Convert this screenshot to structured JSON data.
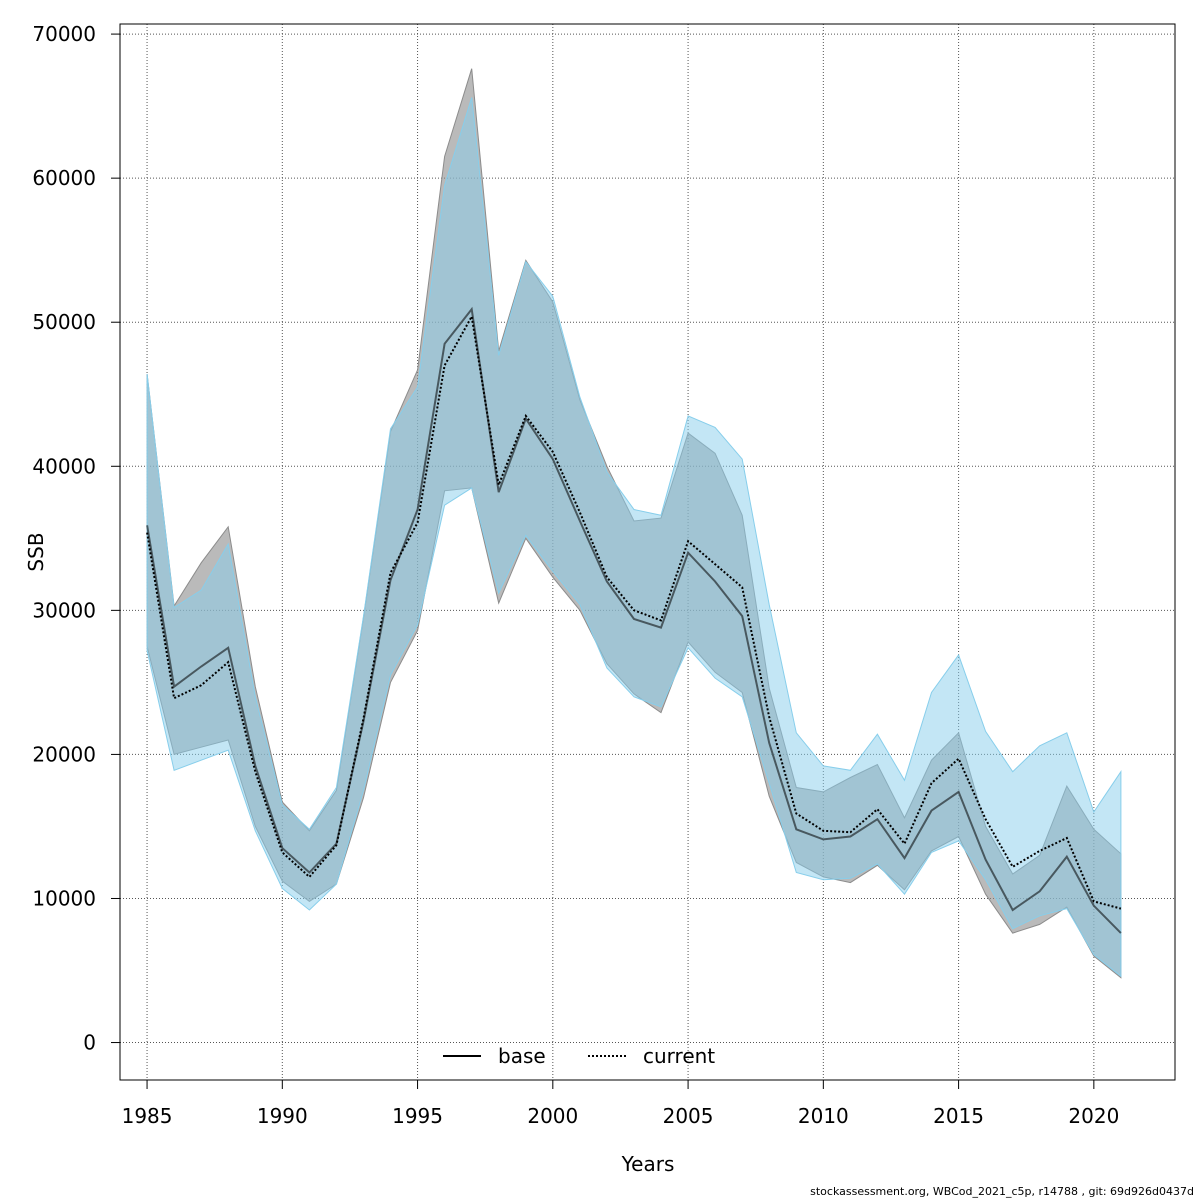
{
  "chart_data": {
    "type": "line",
    "title": "",
    "xlabel": "Years",
    "ylabel": "SSB",
    "xlim": [
      1984,
      2023
    ],
    "ylim": [
      -2600,
      70700
    ],
    "grid": true,
    "legend_position": "bottom-center",
    "x_ticks": [
      1985,
      1990,
      1995,
      2000,
      2005,
      2010,
      2015,
      2020
    ],
    "y_ticks": [
      0,
      10000,
      20000,
      30000,
      40000,
      50000,
      60000,
      70000
    ],
    "x": [
      1985,
      1986,
      1987,
      1988,
      1989,
      1990,
      1991,
      1992,
      1993,
      1994,
      1995,
      1996,
      1997,
      1998,
      1999,
      2000,
      2001,
      2002,
      2003,
      2004,
      2005,
      2006,
      2007,
      2008,
      2009,
      2010,
      2011,
      2012,
      2013,
      2014,
      2015,
      2016,
      2017,
      2018,
      2019,
      2020,
      2021
    ],
    "series": [
      {
        "name": "base",
        "line_style": "solid",
        "line_color": "#000000",
        "band_color": "#8c8c8c",
        "values": [
          35900,
          24700,
          26100,
          27400,
          19200,
          13500,
          11800,
          13800,
          22300,
          32100,
          37000,
          48500,
          50900,
          38200,
          43300,
          40500,
          36200,
          32000,
          29400,
          28800,
          34000,
          32000,
          29600,
          20800,
          14800,
          14100,
          14300,
          15500,
          12800,
          16100,
          17400,
          12700,
          9200,
          10500,
          12900,
          9500,
          7600
        ],
        "lower": [
          27500,
          20000,
          20500,
          21000,
          15000,
          11200,
          9800,
          11000,
          17000,
          25000,
          28600,
          38300,
          38500,
          30500,
          35000,
          32300,
          30000,
          26300,
          24200,
          22900,
          27800,
          25700,
          24300,
          17100,
          12500,
          11500,
          11100,
          12300,
          10600,
          13300,
          14300,
          10300,
          7600,
          8200,
          9400,
          6000,
          4500
        ],
        "upper": [
          46400,
          30300,
          33300,
          35800,
          24700,
          16700,
          14700,
          17500,
          29500,
          42400,
          46700,
          61500,
          67600,
          48000,
          54300,
          51400,
          44600,
          40000,
          36200,
          36400,
          42300,
          40900,
          36600,
          24600,
          17700,
          17400,
          18400,
          19300,
          15600,
          19600,
          21500,
          15000,
          11700,
          13000,
          17800,
          14800,
          13100
        ]
      },
      {
        "name": "current",
        "line_style": "dotted",
        "line_color": "#000000",
        "band_color": "#87ceeb",
        "values": [
          35400,
          23900,
          24800,
          26400,
          18800,
          13200,
          11500,
          13700,
          22500,
          32600,
          36100,
          47000,
          50400,
          38700,
          43500,
          41000,
          36800,
          32300,
          30000,
          29300,
          34800,
          33200,
          31600,
          22600,
          15900,
          14700,
          14600,
          16200,
          13800,
          18000,
          19700,
          15500,
          12200,
          13300,
          14200,
          9800,
          9300
        ],
        "lower": [
          27200,
          18900,
          19600,
          20300,
          14700,
          10700,
          9200,
          11000,
          17500,
          25500,
          29000,
          37300,
          38500,
          31200,
          35200,
          32700,
          30400,
          26000,
          24000,
          23300,
          27400,
          25300,
          24000,
          18000,
          11800,
          11300,
          11400,
          12400,
          10300,
          13200,
          14000,
          11300,
          7900,
          8800,
          9300,
          6100,
          4600
        ],
        "upper": [
          46400,
          30200,
          31400,
          34600,
          24000,
          16500,
          14800,
          17700,
          29600,
          42600,
          45500,
          59500,
          65600,
          47700,
          54200,
          51800,
          44800,
          39600,
          37000,
          36600,
          43500,
          42700,
          40500,
          30400,
          21500,
          19200,
          18900,
          21400,
          18200,
          24300,
          26900,
          21600,
          18800,
          20600,
          21500,
          16000,
          18800
        ]
      }
    ]
  },
  "footer": "stockassessment.org, WBCod_2021_c5p, r14788 , git: 69d926d0437d"
}
